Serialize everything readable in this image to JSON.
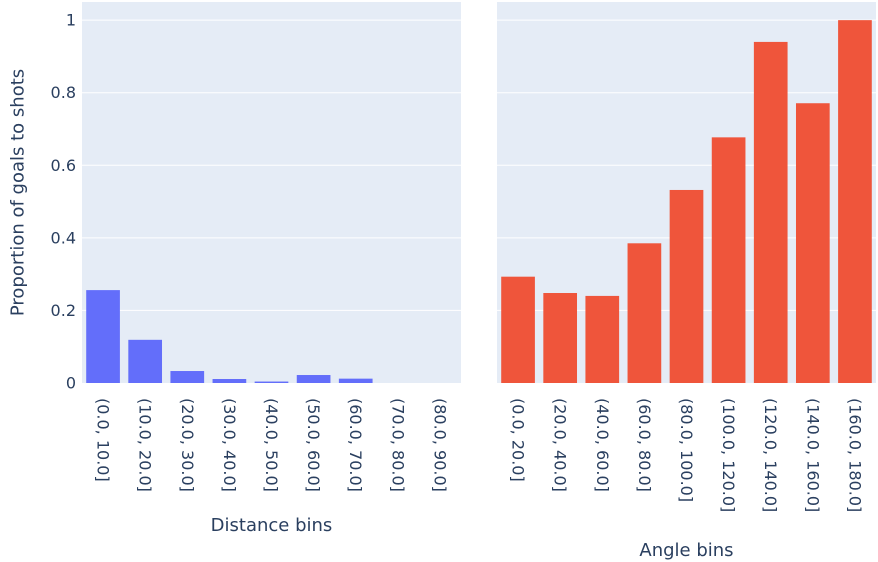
{
  "ylabel": "Proportion of goals to shots",
  "yticks": [
    "0",
    "0.2",
    "0.4",
    "0.6",
    "0.8",
    "1"
  ],
  "chart_data": [
    {
      "type": "bar",
      "xlabel": "Distance bins",
      "ylabel": "Proportion of goals to shots",
      "color": "#636efa",
      "ylim": [
        0,
        1.05
      ],
      "grid": true,
      "categories": [
        "(0.0, 10.0]",
        "(10.0, 20.0]",
        "(20.0, 30.0]",
        "(30.0, 40.0]",
        "(40.0, 50.0]",
        "(50.0, 60.0]",
        "(60.0, 70.0]",
        "(70.0, 80.0]",
        "(80.0, 90.0]"
      ],
      "values": [
        0.256,
        0.119,
        0.033,
        0.011,
        0.004,
        0.022,
        0.012,
        0.0,
        0.0
      ]
    },
    {
      "type": "bar",
      "xlabel": "Angle bins",
      "color": "#ef553b",
      "ylim": [
        0,
        1.05
      ],
      "grid": true,
      "categories": [
        "(0.0, 20.0]",
        "(20.0, 40.0]",
        "(40.0, 60.0]",
        "(60.0, 80.0]",
        "(80.0, 100.0]",
        "(100.0, 120.0]",
        "(120.0, 140.0]",
        "(140.0, 160.0]",
        "(160.0, 180.0]"
      ],
      "values": [
        0.293,
        0.248,
        0.24,
        0.385,
        0.532,
        0.677,
        0.94,
        0.771,
        1.0
      ]
    }
  ]
}
